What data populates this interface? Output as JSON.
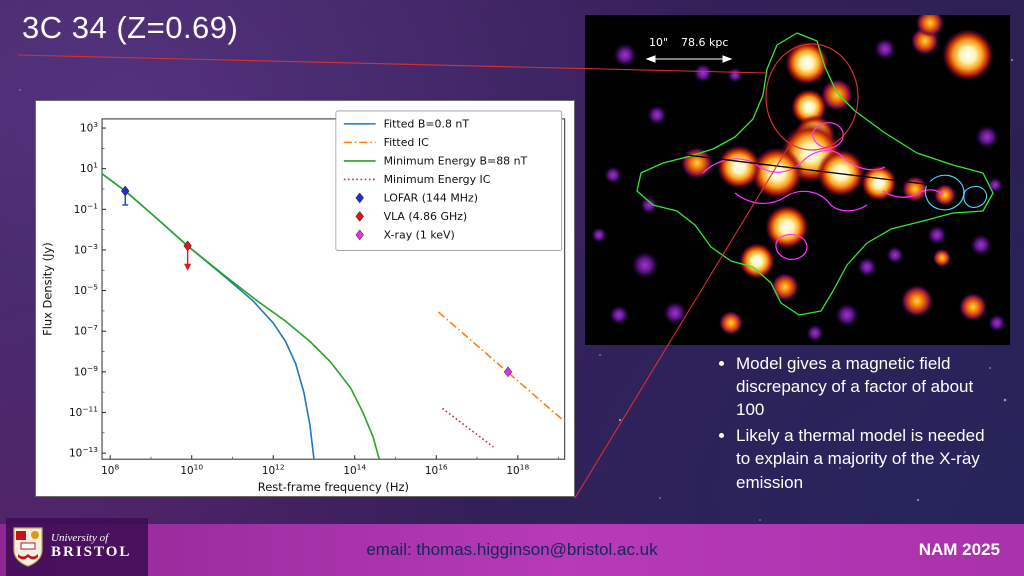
{
  "slide": {
    "title": "3C 34 (Z=0.69)",
    "bullets": [
      "Model gives a magnetic field discrepancy of a factor of about 100",
      "Likely a thermal model is needed to explain a majority of the X-ray emission"
    ],
    "image_annotations": {
      "scale_arcsec": "10\"",
      "scale_kpc": "78.6 kpc"
    },
    "footer": {
      "email": "email: thomas.higginson@bristol.ac.uk",
      "event": "NAM 2025",
      "logo_line1": "University of",
      "logo_line2": "BRISTOL"
    }
  },
  "chart_data": {
    "type": "line",
    "title": "",
    "xlabel": "Rest-frame frequency (Hz)",
    "ylabel": "Flux Density (Jy)",
    "x_scale": "log",
    "y_scale": "log",
    "grid": false,
    "legend_position": "upper right",
    "xlim_log10": [
      7.8,
      19.15
    ],
    "ylim_log10": [
      -13.3,
      3.45
    ],
    "x_ticks_log10": [
      8,
      10,
      12,
      14,
      16,
      18
    ],
    "y_ticks_log10": [
      3,
      1,
      -1,
      -3,
      -5,
      -7,
      -9,
      -11,
      -13
    ],
    "series": [
      {
        "name": "Fitted B=0.8 nT",
        "color": "#1f77b4",
        "style": "solid",
        "points_log10": [
          [
            7.8,
            0.75
          ],
          [
            8.4,
            -0.15
          ],
          [
            9.0,
            -1.2
          ],
          [
            9.9,
            -2.8
          ],
          [
            10.8,
            -4.3
          ],
          [
            11.5,
            -5.5
          ],
          [
            12.0,
            -6.6
          ],
          [
            12.3,
            -7.5
          ],
          [
            12.55,
            -8.6
          ],
          [
            12.75,
            -10.0
          ],
          [
            12.9,
            -11.6
          ],
          [
            13.0,
            -13.3
          ]
        ]
      },
      {
        "name": "Fitted IC",
        "color": "#ff7f0e",
        "style": "dashdot",
        "points_log10": [
          [
            16.05,
            -6.05
          ],
          [
            19.15,
            -11.45
          ]
        ]
      },
      {
        "name": "Minimum Energy B=88 nT",
        "color": "#2ca02c",
        "style": "solid",
        "points_log10": [
          [
            7.8,
            0.75
          ],
          [
            8.4,
            -0.15
          ],
          [
            9.0,
            -1.2
          ],
          [
            9.9,
            -2.8
          ],
          [
            10.8,
            -4.25
          ],
          [
            11.6,
            -5.5
          ],
          [
            12.3,
            -6.5
          ],
          [
            12.9,
            -7.5
          ],
          [
            13.4,
            -8.5
          ],
          [
            13.9,
            -9.8
          ],
          [
            14.2,
            -11.0
          ],
          [
            14.45,
            -12.2
          ],
          [
            14.6,
            -13.3
          ]
        ]
      },
      {
        "name": "Minimum Energy IC",
        "color": "#d62728",
        "style": "dotted",
        "points_log10": [
          [
            16.15,
            -10.8
          ],
          [
            17.4,
            -12.7
          ]
        ]
      }
    ],
    "markers": [
      {
        "name": "LOFAR (144 MHz)",
        "color": "#2030c8",
        "x_log10": 8.37,
        "y_log10": -0.1,
        "errorbar": true
      },
      {
        "name": "VLA (4.86 GHz)",
        "color": "#e01616",
        "x_log10": 9.9,
        "y_log10": -2.8,
        "upper_limit_arrow": true
      },
      {
        "name": "X-ray (1 keV)",
        "color": "#e531e5",
        "x_log10": 17.76,
        "y_log10": -9.0
      }
    ]
  }
}
